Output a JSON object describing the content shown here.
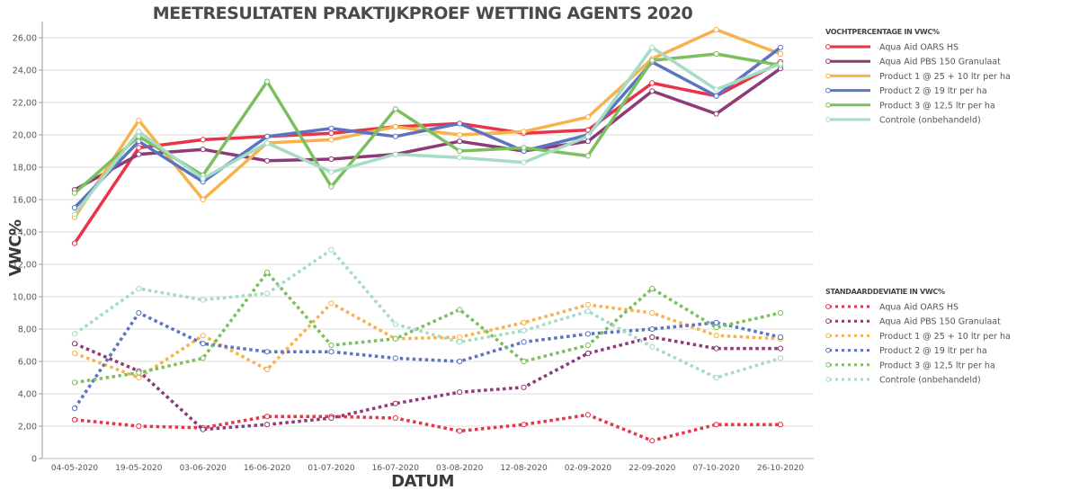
{
  "chart_data": {
    "type": "line",
    "title": "MEETRESULTATEN PRAKTIJKPROEF WETTING AGENTS 2020",
    "xlabel": "DATUM",
    "ylabel": "VWC%",
    "ylim": [
      0,
      26
    ],
    "yticks": [
      "0",
      "2,00",
      "4,00",
      "6,00",
      "8,00",
      "10,00",
      "12,00",
      "14,00",
      "16,00",
      "18,00",
      "20,00",
      "22,00",
      "24,00",
      "26,00"
    ],
    "ytick_values": [
      0,
      2,
      4,
      6,
      8,
      10,
      12,
      14,
      16,
      18,
      20,
      22,
      24,
      26
    ],
    "grid": true,
    "legend_placement": "right",
    "categories": [
      "04-05-2020",
      "19-05-2020",
      "03-06-2020",
      "16-06-2020",
      "01-07-2020",
      "16-07-2020",
      "03-08-2020",
      "12-08-2020",
      "02-09-2020",
      "22-09-2020",
      "07-10-2020",
      "26-10-2020"
    ],
    "groups": [
      {
        "legend_title": "VOCHTPERCENTAGE IN VWC%",
        "style": "solid",
        "series": [
          {
            "name": "Aqua Aid OARS HS",
            "color": "#e8334a",
            "values": [
              13.3,
              19.2,
              19.7,
              19.9,
              20.1,
              20.5,
              20.7,
              20.1,
              20.3,
              23.2,
              22.4,
              24.5
            ]
          },
          {
            "name": "Aqua Aid PBS 150 Granulaat",
            "color": "#8e3a78",
            "values": [
              16.6,
              18.8,
              19.1,
              18.4,
              18.5,
              18.8,
              19.6,
              19.0,
              19.6,
              22.7,
              21.3,
              24.1
            ]
          },
          {
            "name": "Product 1 @ 25 + 10 ltr per ha",
            "color": "#f7b24c",
            "values": [
              14.9,
              20.9,
              16.0,
              19.5,
              19.7,
              20.5,
              20.0,
              20.2,
              21.1,
              24.7,
              26.5,
              25.0
            ]
          },
          {
            "name": "Product 2 @ 19 ltr per ha",
            "color": "#5b74c2",
            "values": [
              15.5,
              19.6,
              17.1,
              19.9,
              20.4,
              19.9,
              20.7,
              19.0,
              20.0,
              24.5,
              22.4,
              25.4
            ]
          },
          {
            "name": "Product 3 @ 12,5 ltr per ha",
            "color": "#7cbf5e",
            "values": [
              16.4,
              19.9,
              17.5,
              23.3,
              16.8,
              21.6,
              19.0,
              19.2,
              18.7,
              24.6,
              25.0,
              24.3
            ]
          },
          {
            "name": "Controle (onbehandeld)",
            "color": "#a6dcc4",
            "values": [
              15.1,
              20.2,
              17.3,
              19.5,
              17.7,
              18.8,
              18.6,
              18.3,
              19.9,
              25.4,
              22.8,
              24.4
            ]
          }
        ]
      },
      {
        "legend_title": "STANDAARDDEVIATIE IN VWC%",
        "style": "dotted",
        "series": [
          {
            "name": "Aqua Aid OARS HS",
            "color": "#e8334a",
            "values": [
              2.4,
              2.0,
              1.9,
              2.6,
              2.6,
              2.5,
              1.7,
              2.1,
              2.7,
              1.1,
              2.1,
              2.1
            ]
          },
          {
            "name": "Aqua Aid PBS 150 Granulaat",
            "color": "#8e3a78",
            "values": [
              7.1,
              5.4,
              1.8,
              2.1,
              2.5,
              3.4,
              4.1,
              4.4,
              6.5,
              7.5,
              6.8,
              6.8
            ]
          },
          {
            "name": "Product 1 @ 25 + 10 ltr per ha",
            "color": "#f7b24c",
            "values": [
              6.5,
              5.0,
              7.6,
              5.5,
              9.6,
              7.4,
              7.5,
              8.4,
              9.5,
              9.0,
              7.6,
              7.4
            ]
          },
          {
            "name": "Product 2 @ 19 ltr per ha",
            "color": "#5b74c2",
            "values": [
              3.1,
              9.0,
              7.1,
              6.6,
              6.6,
              6.2,
              6.0,
              7.2,
              7.7,
              8.0,
              8.4,
              7.5
            ]
          },
          {
            "name": "Product 3 @ 12,5 ltr per ha",
            "color": "#7cbf5e",
            "values": [
              4.7,
              5.3,
              6.2,
              11.5,
              7.0,
              7.4,
              9.2,
              6.0,
              7.0,
              10.5,
              8.1,
              9.0
            ]
          },
          {
            "name": "Controle (onbehandeld)",
            "color": "#a6dcc4",
            "values": [
              7.7,
              10.5,
              9.8,
              10.2,
              12.9,
              8.3,
              7.2,
              7.9,
              9.1,
              6.9,
              5.0,
              6.2
            ]
          }
        ]
      }
    ]
  }
}
